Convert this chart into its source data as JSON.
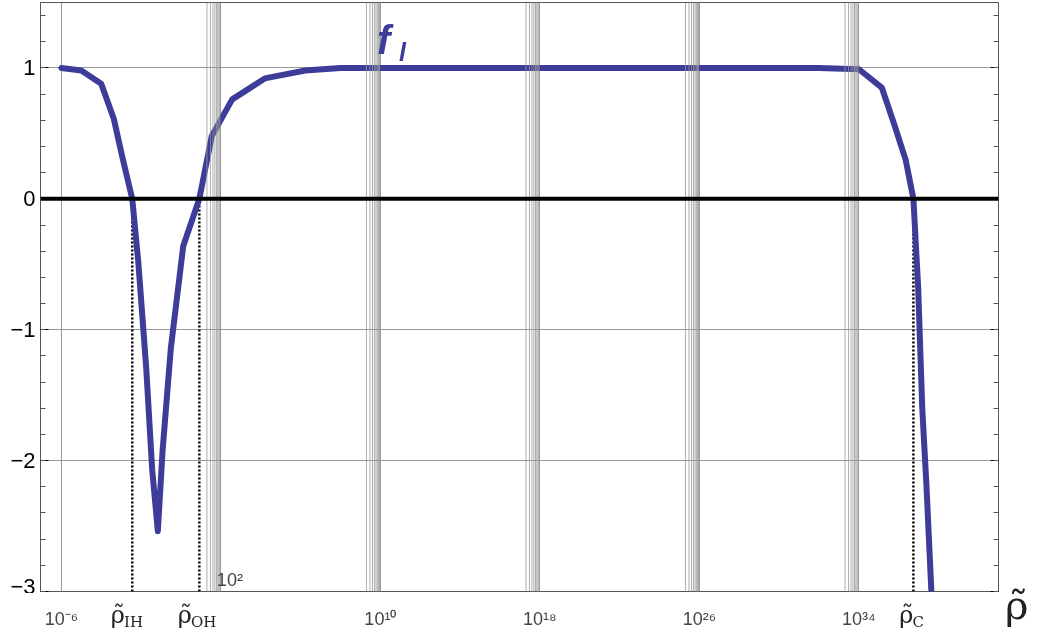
{
  "chart_data": {
    "type": "line",
    "xlabel": "ρ̃",
    "log": "x",
    "xlim": [
      9e-08,
      1e+41
    ],
    "ylim": [
      -3,
      1.5
    ],
    "xticks": [
      {
        "value": 1e-06,
        "label": "10⁻⁶"
      },
      {
        "value": 0.0036,
        "label": "ρ̃$_{IH}$"
      },
      {
        "value": 8.3,
        "label": "ρ̃$_{OH}$"
      },
      {
        "value": 100,
        "label": null
      },
      {
        "value": 10000000000.0,
        "label": "10¹⁰"
      },
      {
        "value": 1e+18,
        "label": "10¹⁸"
      },
      {
        "value": 1e+26,
        "label": "10²⁶"
      },
      {
        "value": 1e+34,
        "label": "10³⁴"
      },
      {
        "value": 5.4e+36,
        "label": "ρ̃$_{C}$"
      }
    ],
    "yticks": [
      {
        "value": -3,
        "label": "−3"
      },
      {
        "value": -2,
        "label": "−2"
      },
      {
        "value": -1,
        "label": "−1"
      },
      0,
      1
    ],
    "grid": true,
    "x": [
      1e-06,
      1e-05,
      0.0001,
      0.00043,
      0.0011,
      0.0036,
      0.0072,
      0.018,
      0.036,
      0.069,
      0.12,
      0.31,
      1.3,
      8.3,
      35,
      370,
      16000,
      1700000.0,
      100000000.0,
      1e+32,
      1e+34,
      1.4e+35,
      5.6e+35,
      2.2e+36,
      5.4e+36,
      9.3e+36,
      1.5e+37,
      2.4e+37,
      4.3e+37
    ],
    "series": [
      {
        "name": "f$_{l}$",
        "color": "#3d3d99",
        "values": [
          1.0,
          0.98,
          0.88,
          0.61,
          0.33,
          0,
          -0.48,
          -1.29,
          -2.07,
          -2.54,
          -1.92,
          -1.14,
          -0.36,
          0,
          0.48,
          0.76,
          0.92,
          0.98,
          1.0,
          1.0,
          0.99,
          0.85,
          0.58,
          0.3,
          0,
          -0.67,
          -1.6,
          -2.17,
          -3
        ]
      }
    ],
    "ref_lines": [
      {
        "axis": "y",
        "value": 0,
        "color": "#000000",
        "line_style": "solid"
      },
      {
        "axis": "x",
        "value": 0.0036,
        "color": "#000000",
        "line_style": "dotted"
      },
      {
        "axis": "x",
        "value": 8.3,
        "color": "#000000",
        "line_style": "dotted"
      },
      {
        "axis": "x",
        "value": 5.4e+36,
        "color": "#000000",
        "line_style": "dotted"
      }
    ],
    "annotations": [
      "10²"
    ]
  }
}
